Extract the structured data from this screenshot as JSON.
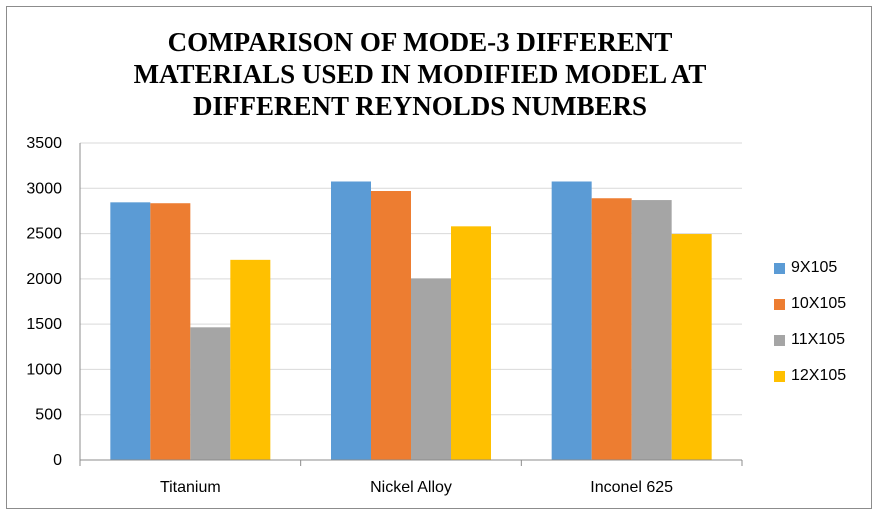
{
  "chart_data": {
    "type": "bar",
    "title": "COMPARISON OF MODE-3 DIFFERENT MATERIALS USED IN MODIFIED MODEL AT DIFFERENT REYNOLDS NUMBERS",
    "categories": [
      "Titanium",
      "Nickel Alloy",
      "Inconel 625"
    ],
    "series": [
      {
        "name": "9X105",
        "color": "#5B9BD5",
        "values": [
          2845,
          3075,
          3075
        ]
      },
      {
        "name": "10X105",
        "color": "#ED7D31",
        "values": [
          2835,
          2970,
          2890
        ]
      },
      {
        "name": "11X105",
        "color": "#A5A5A5",
        "values": [
          1465,
          2005,
          2870
        ]
      },
      {
        "name": "12X105",
        "color": "#FFC000",
        "values": [
          2210,
          2580,
          2495
        ]
      }
    ],
    "ylim": [
      0,
      3500
    ],
    "yticks": [
      0,
      500,
      1000,
      1500,
      2000,
      2500,
      3000,
      3500
    ],
    "grid": true,
    "legend": "right"
  }
}
